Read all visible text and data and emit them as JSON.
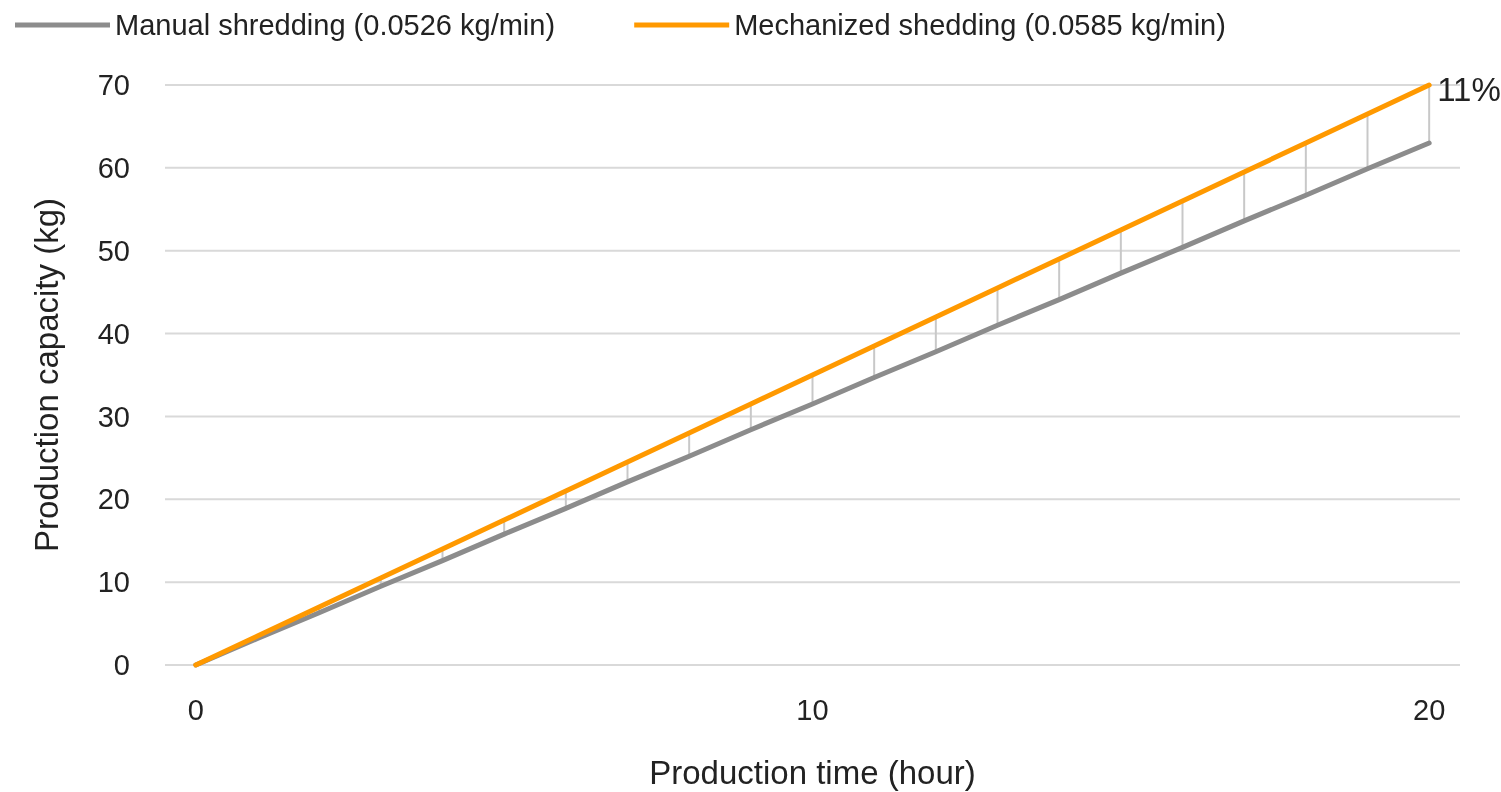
{
  "chart_data": {
    "type": "line",
    "xlabel": "Production time (hour)",
    "ylabel": "Production capacity (kg)",
    "x": [
      0,
      1,
      2,
      3,
      4,
      5,
      6,
      7,
      8,
      9,
      10,
      11,
      12,
      13,
      14,
      15,
      16,
      17,
      18,
      19,
      20
    ],
    "series": [
      {
        "name": "Manual shredding (0.0526 kg/min)",
        "color": "#8c8c8c",
        "values": [
          0,
          3.2,
          6.3,
          9.5,
          12.6,
          15.8,
          18.9,
          22.1,
          25.2,
          28.4,
          31.5,
          34.7,
          37.8,
          41,
          44.1,
          47.3,
          50.4,
          53.6,
          56.7,
          59.9,
          63
        ]
      },
      {
        "name": "Mechanized shedding (0.0585 kg/min)",
        "color": "#ff9900",
        "values": [
          0,
          3.5,
          7,
          10.5,
          14,
          17.5,
          21,
          24.5,
          28,
          31.5,
          35,
          38.5,
          42,
          45.5,
          49,
          52.5,
          56,
          59.5,
          63,
          66.5,
          70
        ],
        "errors": [
          null,
          [
            3.2,
            3.5
          ],
          [
            6.3,
            7
          ],
          [
            9.5,
            10.5
          ],
          [
            12.6,
            14
          ],
          [
            15.8,
            17.5
          ],
          [
            18.9,
            21
          ],
          [
            22.1,
            24.5
          ],
          [
            25.2,
            28
          ],
          [
            28.4,
            31.5
          ],
          [
            31.5,
            35
          ],
          [
            34.7,
            38.5
          ],
          [
            37.8,
            42
          ],
          [
            41,
            45.5
          ],
          [
            44.1,
            49
          ],
          [
            47.3,
            52.5
          ],
          [
            50.4,
            56
          ],
          [
            53.6,
            59.5
          ],
          [
            56.7,
            63
          ],
          [
            59.9,
            66.5
          ],
          [
            63,
            70
          ]
        ]
      }
    ],
    "annotations": [
      "11%"
    ],
    "xlim": [
      -0.5,
      20.5
    ],
    "xticks": [
      0,
      10,
      20
    ],
    "ylim": [
      0,
      70
    ],
    "yticks": [
      0,
      10,
      20,
      30,
      40,
      50,
      60,
      70
    ],
    "grid": "y",
    "legend": "top",
    "marker": "none",
    "line_style": "solid"
  }
}
